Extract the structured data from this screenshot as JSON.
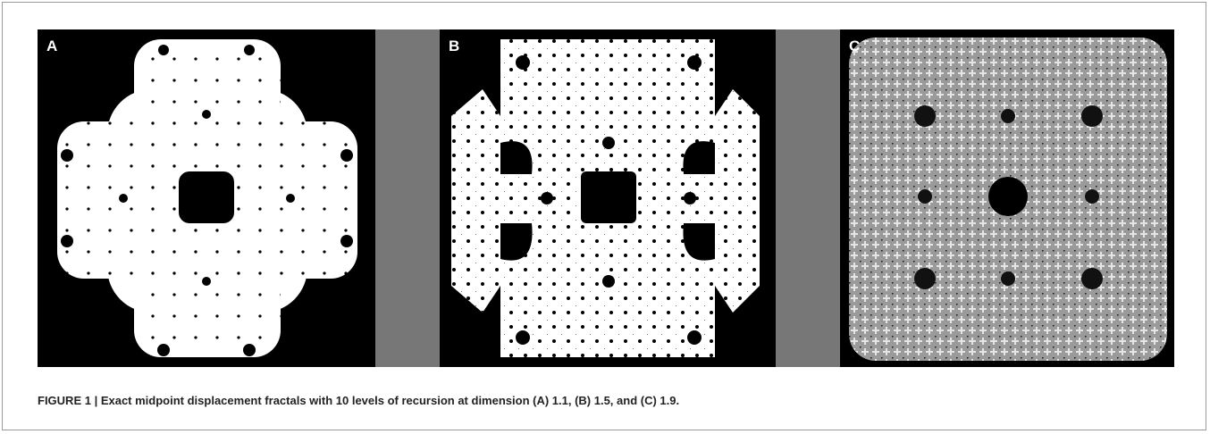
{
  "panels": [
    {
      "label": "A"
    },
    {
      "label": "B"
    },
    {
      "label": "C"
    }
  ],
  "caption": "FIGURE 1 | Exact midpoint displacement fractals with 10 levels of recursion at dimension (A) 1.1, (B) 1.5, and (C) 1.9."
}
